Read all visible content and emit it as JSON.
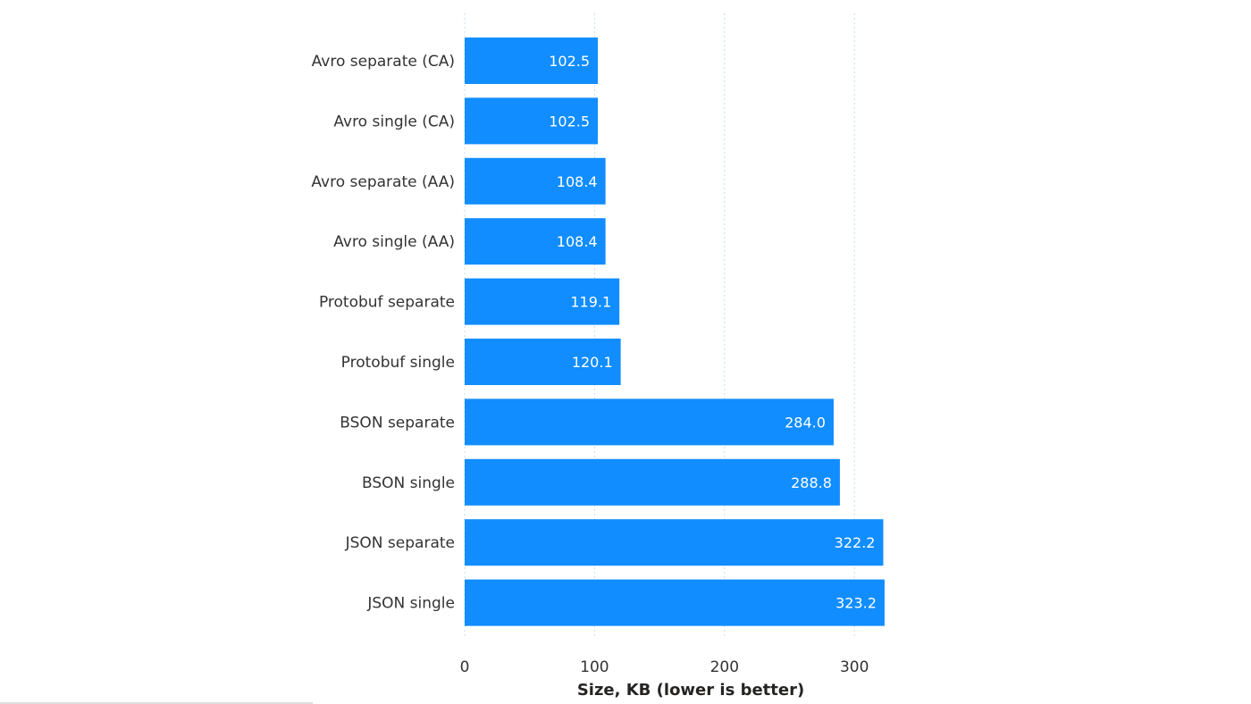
{
  "chart_data": {
    "type": "bar",
    "orientation": "horizontal",
    "categories": [
      "Avro separate (CA)",
      "Avro single (CA)",
      "Avro separate (AA)",
      "Avro single (AA)",
      "Protobuf separate",
      "Protobuf single",
      "BSON separate",
      "BSON single",
      "JSON separate",
      "JSON single"
    ],
    "values": [
      102.5,
      102.5,
      108.4,
      108.4,
      119.1,
      120.1,
      284.0,
      288.8,
      322.2,
      323.2
    ],
    "value_labels": [
      "102.5",
      "102.5",
      "108.4",
      "108.4",
      "119.1",
      "120.1",
      "284.0",
      "288.8",
      "322.2",
      "323.2"
    ],
    "title": "",
    "xlabel": "Size, KB (lower is better)",
    "ylabel": "",
    "xlim": [
      0,
      330
    ],
    "xticks": [
      0,
      100,
      200,
      300
    ],
    "xtick_labels": [
      "0",
      "100",
      "200",
      "300"
    ],
    "grid": true,
    "legend": "none",
    "bar_color": "#118dff",
    "label_color": "#ffffff"
  }
}
